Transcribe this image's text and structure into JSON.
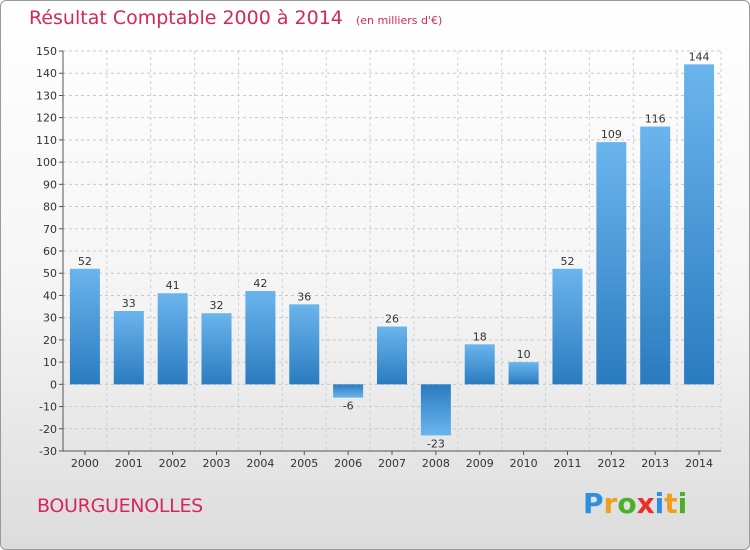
{
  "chart_data": {
    "type": "bar",
    "title": "Résultat Comptable 2000 à 2014",
    "subtitle": "(en milliers d'€)",
    "categories": [
      "2000",
      "2001",
      "2002",
      "2003",
      "2004",
      "2005",
      "2006",
      "2007",
      "2008",
      "2009",
      "2010",
      "2011",
      "2012",
      "2013",
      "2014"
    ],
    "values": [
      52,
      33,
      41,
      32,
      42,
      36,
      -6,
      26,
      -23,
      18,
      10,
      52,
      109,
      116,
      144
    ],
    "ylim": [
      -30,
      150
    ],
    "yticks": [
      -30,
      -20,
      -10,
      0,
      10,
      20,
      30,
      40,
      50,
      60,
      70,
      80,
      90,
      100,
      110,
      120,
      130,
      140,
      150
    ],
    "grid": true,
    "legend": "none"
  },
  "place_name": "BOURGUENOLLES",
  "logo": {
    "text": "Proxiti",
    "letters": [
      "P",
      "r",
      "o",
      "x",
      "i",
      "t",
      "i"
    ],
    "colors": [
      "#2f8ee0",
      "#f0a020",
      "#4caf2a",
      "#e8302a",
      "#2f8ee0",
      "#f0a020",
      "#4caf2a"
    ]
  },
  "colors": {
    "bar_light": "#6bb5ee",
    "bar_dark": "#2a7bbf",
    "title": "#d4285b"
  }
}
